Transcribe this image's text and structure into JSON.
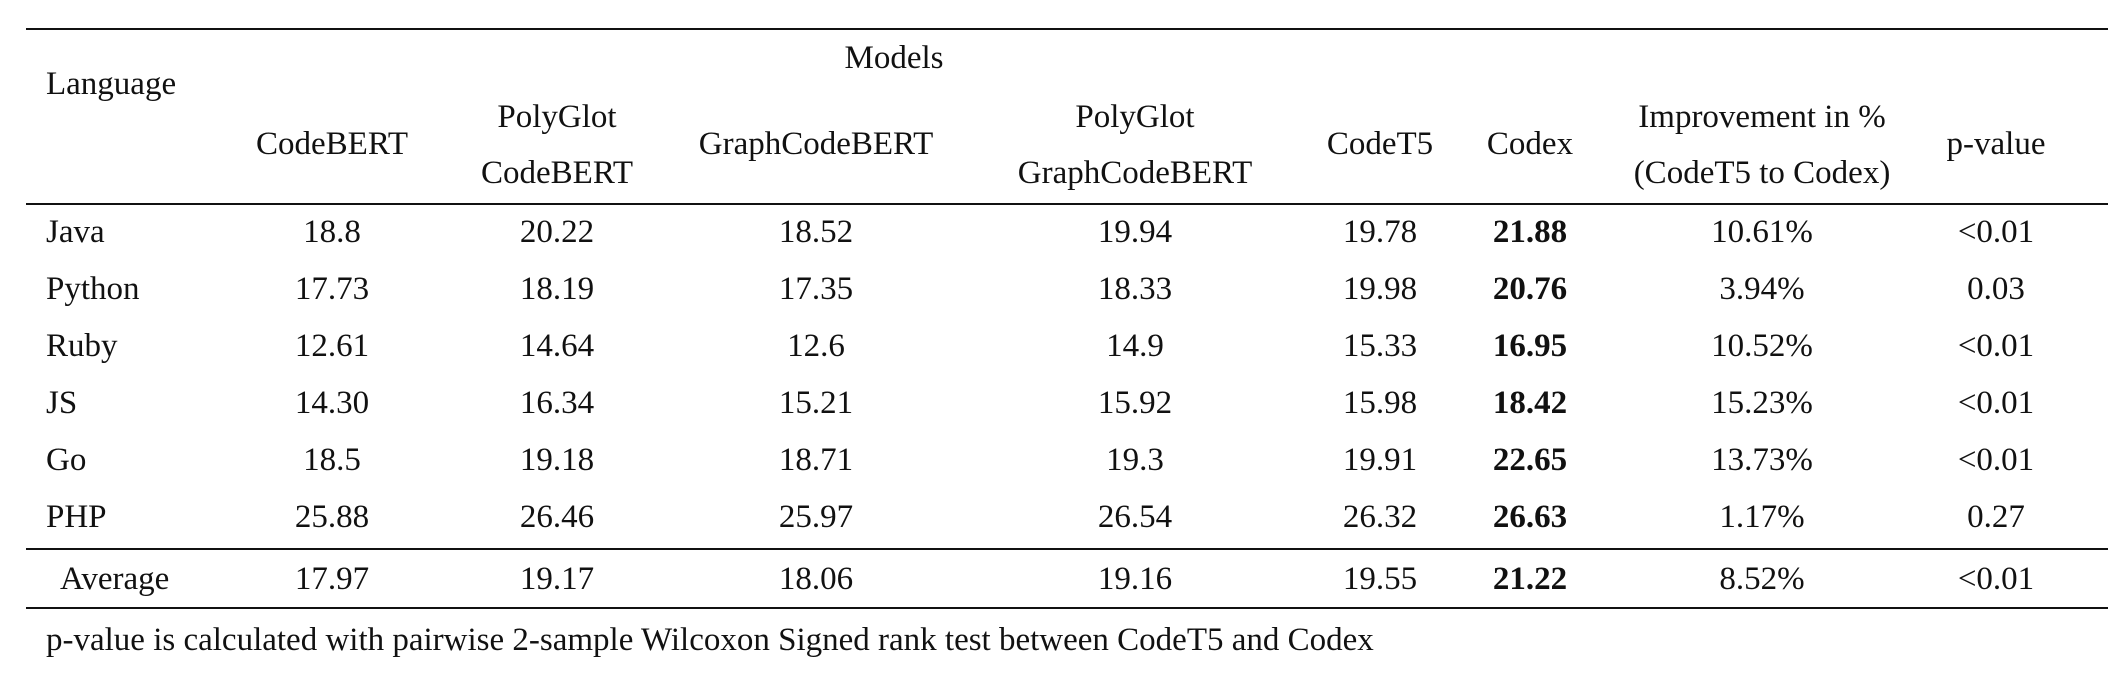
{
  "table": {
    "header": {
      "language": "Language",
      "models": "Models",
      "columns": [
        {
          "line1": "CodeBERT",
          "line2": ""
        },
        {
          "line1": "PolyGlot",
          "line2": "CodeBERT"
        },
        {
          "line1": "GraphCodeBERT",
          "line2": ""
        },
        {
          "line1": "PolyGlot",
          "line2": "GraphCodeBERT"
        },
        {
          "line1": "CodeT5",
          "line2": ""
        },
        {
          "line1": "Codex",
          "line2": ""
        },
        {
          "line1": "Improvement in %",
          "line2": "(CodeT5 to Codex)"
        },
        {
          "line1": "p-value",
          "line2": ""
        }
      ]
    },
    "rows": [
      {
        "language": "Java",
        "values": [
          "18.8",
          "20.22",
          "18.52",
          "19.94",
          "19.78",
          "21.88",
          "10.61%",
          "<0.01"
        ]
      },
      {
        "language": "Python",
        "values": [
          "17.73",
          "18.19",
          "17.35",
          "18.33",
          "19.98",
          "20.76",
          "3.94%",
          "0.03"
        ]
      },
      {
        "language": "Ruby",
        "values": [
          "12.61",
          "14.64",
          "12.6",
          "14.9",
          "15.33",
          "16.95",
          "10.52%",
          "<0.01"
        ]
      },
      {
        "language": "JS",
        "values": [
          "14.30",
          "16.34",
          "15.21",
          "15.92",
          "15.98",
          "18.42",
          "15.23%",
          "<0.01"
        ]
      },
      {
        "language": "Go",
        "values": [
          "18.5",
          "19.18",
          "18.71",
          "19.3",
          "19.91",
          "22.65",
          "13.73%",
          "<0.01"
        ]
      },
      {
        "language": "PHP",
        "values": [
          "25.88",
          "26.46",
          "25.97",
          "26.54",
          "26.32",
          "26.63",
          "1.17%",
          "0.27"
        ]
      }
    ],
    "average": {
      "language": "Average",
      "values": [
        "17.97",
        "19.17",
        "18.06",
        "19.16",
        "19.55",
        "21.22",
        "8.52%",
        "<0.01"
      ]
    },
    "bold_column": 5,
    "footnote": "p-value is calculated with pairwise 2-sample Wilcoxon Signed rank test between CodeT5 and Codex"
  }
}
